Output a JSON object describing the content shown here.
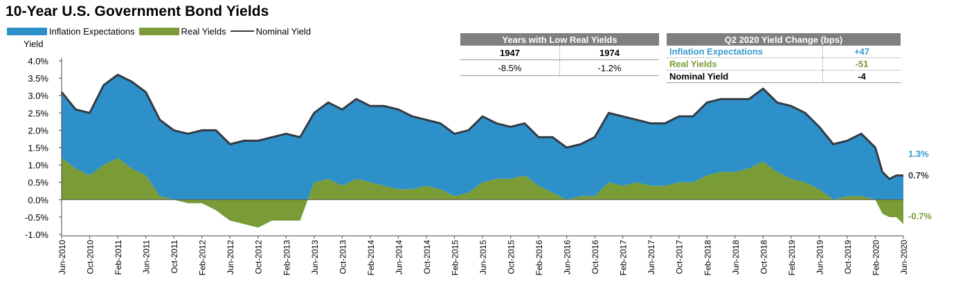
{
  "title": "10-Year U.S. Government Bond Yields",
  "legend": {
    "inflation": "Inflation Expectations",
    "real": "Real Yields",
    "nominal": "Nominal Yield"
  },
  "colors": {
    "inflation": "#2e90c8",
    "real": "#7a9c36",
    "nominal": "#333a45"
  },
  "low_real_table": {
    "header": "Years with Low Real Yields",
    "years": [
      "1947",
      "1974"
    ],
    "values": [
      "-8.5%",
      "-1.2%"
    ]
  },
  "q2_table": {
    "header": "Q2 2020 Yield Change (bps)",
    "rows": [
      {
        "label": "Inflation Expectations",
        "value": "+47"
      },
      {
        "label": "Real Yields",
        "value": "-51"
      },
      {
        "label": "Nominal Yield",
        "value": "-4"
      }
    ]
  },
  "end_labels": {
    "inflation": "1.3%",
    "nominal": "0.7%",
    "real": "-0.7%"
  },
  "chart_data": {
    "type": "area",
    "ylabel": "Yield",
    "ylim": [
      -1.0,
      4.0
    ],
    "yticks": [
      "-1.0%",
      "-0.5%",
      "0.0%",
      "0.5%",
      "1.0%",
      "1.5%",
      "2.0%",
      "2.5%",
      "3.0%",
      "3.5%",
      "4.0%"
    ],
    "xtick_labels": [
      "Jun-2010",
      "Oct-2010",
      "Feb-2011",
      "Jun-2011",
      "Oct-2011",
      "Feb-2012",
      "Jun-2012",
      "Oct-2012",
      "Feb-2013",
      "Jun-2013",
      "Oct-2013",
      "Feb-2014",
      "Jun-2014",
      "Oct-2014",
      "Feb-2015",
      "Jun-2015",
      "Oct-2015",
      "Feb-2016",
      "Jun-2016",
      "Oct-2016",
      "Feb-2017",
      "Jun-2017",
      "Oct-2017",
      "Feb-2018",
      "Jun-2018",
      "Oct-2018",
      "Feb-2019",
      "Jun-2019",
      "Oct-2019",
      "Feb-2020",
      "Jun-2020"
    ],
    "x": [
      "2010-06",
      "2010-08",
      "2010-10",
      "2010-12",
      "2011-02",
      "2011-04",
      "2011-06",
      "2011-08",
      "2011-10",
      "2011-12",
      "2012-02",
      "2012-04",
      "2012-06",
      "2012-08",
      "2012-10",
      "2012-12",
      "2013-02",
      "2013-04",
      "2013-06",
      "2013-08",
      "2013-10",
      "2013-12",
      "2014-02",
      "2014-04",
      "2014-06",
      "2014-08",
      "2014-10",
      "2014-12",
      "2015-02",
      "2015-04",
      "2015-06",
      "2015-08",
      "2015-10",
      "2015-12",
      "2016-02",
      "2016-04",
      "2016-06",
      "2016-08",
      "2016-10",
      "2016-12",
      "2017-02",
      "2017-04",
      "2017-06",
      "2017-08",
      "2017-10",
      "2017-12",
      "2018-02",
      "2018-04",
      "2018-06",
      "2018-08",
      "2018-10",
      "2018-12",
      "2019-02",
      "2019-04",
      "2019-06",
      "2019-08",
      "2019-10",
      "2019-12",
      "2020-02",
      "2020-03",
      "2020-04",
      "2020-05",
      "2020-06"
    ],
    "series": [
      {
        "name": "Nominal Yield",
        "values": [
          3.1,
          2.6,
          2.5,
          3.3,
          3.6,
          3.4,
          3.1,
          2.3,
          2.0,
          1.9,
          2.0,
          2.0,
          1.6,
          1.7,
          1.7,
          1.8,
          1.9,
          1.8,
          2.5,
          2.8,
          2.6,
          2.9,
          2.7,
          2.7,
          2.6,
          2.4,
          2.3,
          2.2,
          1.9,
          2.0,
          2.4,
          2.2,
          2.1,
          2.2,
          1.8,
          1.8,
          1.5,
          1.6,
          1.8,
          2.5,
          2.4,
          2.3,
          2.2,
          2.2,
          2.4,
          2.4,
          2.8,
          2.9,
          2.9,
          2.9,
          3.2,
          2.8,
          2.7,
          2.5,
          2.1,
          1.6,
          1.7,
          1.9,
          1.5,
          0.8,
          0.6,
          0.7,
          0.7
        ]
      },
      {
        "name": "Real Yields",
        "values": [
          1.2,
          0.9,
          0.7,
          1.0,
          1.2,
          0.9,
          0.7,
          0.1,
          0.0,
          -0.1,
          -0.1,
          -0.3,
          -0.6,
          -0.7,
          -0.8,
          -0.6,
          -0.6,
          -0.6,
          0.5,
          0.6,
          0.4,
          0.6,
          0.5,
          0.4,
          0.3,
          0.3,
          0.4,
          0.3,
          0.1,
          0.2,
          0.5,
          0.6,
          0.6,
          0.7,
          0.4,
          0.2,
          0.0,
          0.1,
          0.1,
          0.5,
          0.4,
          0.5,
          0.4,
          0.4,
          0.5,
          0.5,
          0.7,
          0.8,
          0.8,
          0.9,
          1.1,
          0.8,
          0.6,
          0.5,
          0.3,
          0.0,
          0.1,
          0.1,
          0.0,
          -0.4,
          -0.5,
          -0.5,
          -0.7
        ]
      },
      {
        "name": "Inflation Expectations",
        "values": [
          1.9,
          1.7,
          1.8,
          2.3,
          2.4,
          2.5,
          2.4,
          2.2,
          2.0,
          2.0,
          2.1,
          2.3,
          2.2,
          2.4,
          2.5,
          2.4,
          2.5,
          2.4,
          2.0,
          2.2,
          2.2,
          2.3,
          2.2,
          2.3,
          2.3,
          2.1,
          1.9,
          1.9,
          1.8,
          1.8,
          1.9,
          1.6,
          1.5,
          1.5,
          1.4,
          1.6,
          1.5,
          1.5,
          1.7,
          2.0,
          2.0,
          1.8,
          1.8,
          1.8,
          1.9,
          1.9,
          2.1,
          2.1,
          2.1,
          2.0,
          2.1,
          2.0,
          2.1,
          2.0,
          1.8,
          1.6,
          1.6,
          1.8,
          1.5,
          1.2,
          1.1,
          1.2,
          1.3
        ]
      }
    ]
  }
}
